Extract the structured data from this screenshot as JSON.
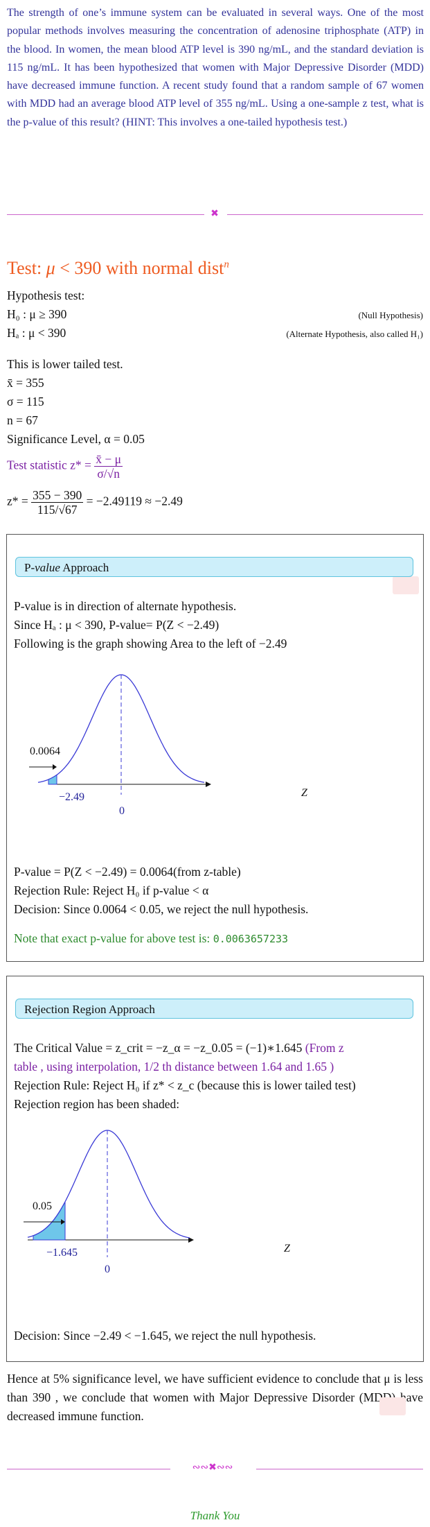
{
  "problem_text": "The strength of one’s immune system can be evaluated in several ways. One of the most popular methods involves measuring the concentration of adenosine triphosphate (ATP) in the blood. In women, the mean blood ATP level is 390 ng/mL, and the standard deviation is 115 ng/mL. It has been hypothesized that women with Major Depressive Disorder (MDD) have decreased immune function. A recent study found that a random sample of 67 women with MDD had an average blood ATP level of 355 ng/mL. Using a one-sample z test, what is the p-value of this result? (HINT: This involves a one-tailed hypothesis test.)",
  "test_title": {
    "prefix": "Test: ",
    "mu": "μ",
    "cond": " < 390 with normal dist",
    "sup": "n"
  },
  "hypothesis": {
    "heading": "Hypothesis test:",
    "h0": "H₀ : μ ≥ 390",
    "h0_note": "(Null Hypothesis)",
    "ha": "Hₐ : μ < 390",
    "ha_note": "(Alternate Hypothesis, also called H₁)"
  },
  "given": {
    "tail": "This is lower tailed test.",
    "xbar": "x̄ = 355",
    "sigma": "σ = 115",
    "n": "n = 67",
    "alpha": "Significance Level, α = 0.05"
  },
  "statistic": {
    "label": "Test statistic z* = ",
    "num": "x̄ − μ",
    "den": "σ/√n",
    "lhs": "z* = ",
    "calc_num": "355 − 390",
    "calc_den": "115/√67",
    "result": " = −2.49119 ≈ −2.49"
  },
  "pvalue_box": {
    "title_prefix": "P-",
    "title_italic": "value",
    "title_suffix": " Approach",
    "l1": "P-value is in direction of alternate hypothesis.",
    "l2": "Since Hₐ : μ < 390, P-value= P(Z < −2.49)",
    "l3": "Following is the graph showing Area to the left of −2.49",
    "graph": {
      "area_label": "0.0064",
      "z_label": "−2.49",
      "center_label": "0",
      "axis_label": "Z"
    },
    "l4": "P-value = P(Z < −2.49) = 0.0064(from z-table)",
    "l5": "Rejection Rule: Reject H₀ if p-value < α",
    "l6": "Decision: Since 0.0064 < 0.05, we reject the null hypothesis.",
    "note": "Note that exact p-value for above test is: ",
    "exact": "0.0063657233"
  },
  "rr_box": {
    "title": "Rejection Region Approach",
    "cv_text": "The Critical Value = z_crit = −z_α = −z_0.05 = (−1)∗1.645",
    "cv_note1": "(From z",
    "cv_note2": "table , using interpolation, 1/2 th distance between 1.64 and 1.65 )",
    "rule": "Rejection Rule: Reject H₀ if z* < z_c (because this is lower tailed test)",
    "shaded": "Rejection region has been shaded:",
    "graph": {
      "area_label": "0.05",
      "z_label": "−1.645",
      "center_label": "0",
      "axis_label": "Z"
    },
    "decision": "Decision: Since −2.49 < −1.645, we reject the null hypothesis."
  },
  "conclusion": "Hence at 5% significance level, we have sufficient evidence to conclude that μ is less than 390 , we conclude that women with Major Depressive Disorder (MDD) have decreased immune function.",
  "thank_you": "Thank You",
  "colors": {
    "problem": "#33339a",
    "title": "#ee5a1f",
    "purple": "#7a1fa2",
    "green": "#2e8b2e",
    "curve": "#3a3ad6",
    "shade": "#6ec6ea"
  }
}
